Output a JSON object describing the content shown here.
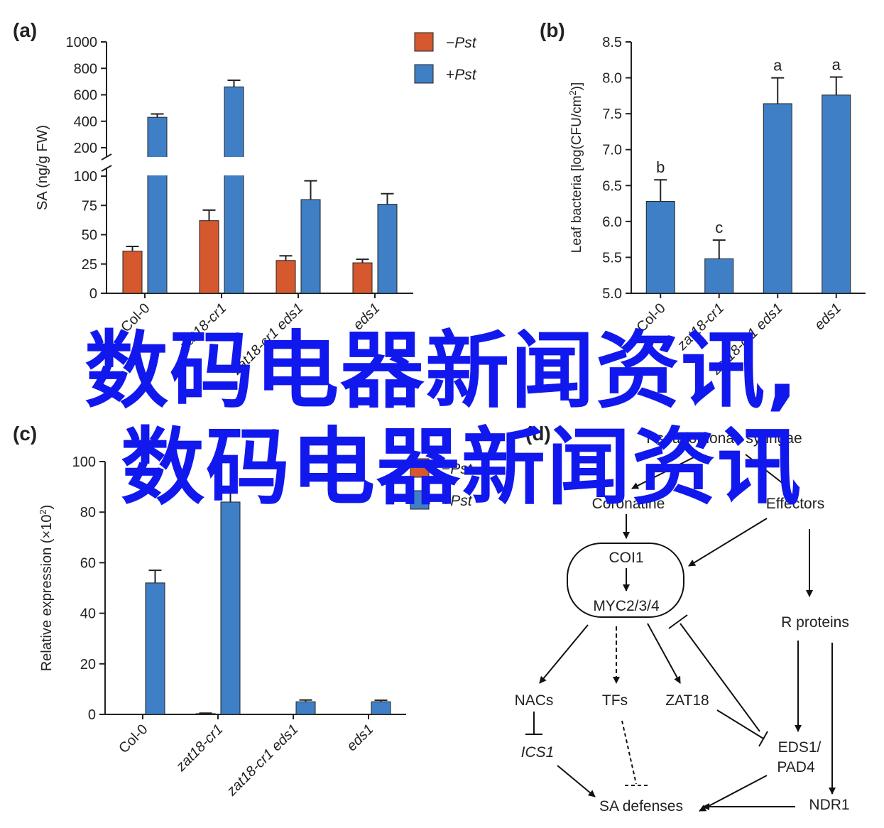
{
  "colors": {
    "minus_pst": "#d6582f",
    "plus_pst": "#3f7fc5",
    "axis": "#222222"
  },
  "chart_data": [
    {
      "panel": "(a)",
      "type": "bar",
      "ylabel": "SA (ng/g FW)",
      "categories": [
        "Col-0",
        "zat18-cr1",
        "zat18-cr1 eds1",
        "eds1"
      ],
      "series": [
        {
          "name": "−Pst",
          "values": [
            36,
            62,
            28,
            26
          ],
          "errors": [
            4,
            9,
            4,
            3
          ]
        },
        {
          "name": "+Pst",
          "values": [
            430,
            660,
            80,
            76
          ],
          "errors": [
            25,
            50,
            16,
            9
          ]
        }
      ],
      "y_break": {
        "lower": [
          0,
          100
        ],
        "upper": [
          100,
          1000
        ]
      },
      "yticks_lower": [
        "0",
        "25",
        "50",
        "75",
        "100"
      ],
      "yticks_upper": [
        "200",
        "400",
        "600",
        "800",
        "1000"
      ],
      "legend": "top-right"
    },
    {
      "panel": "(b)",
      "type": "bar",
      "ylabel": "Leaf bacteria [log(CFU/cm2)]",
      "categories": [
        "Col-0",
        "zat18-cr1",
        "zat18-cr1 eds1",
        "eds1"
      ],
      "values": [
        6.28,
        5.48,
        7.64,
        7.76
      ],
      "errors": [
        0.3,
        0.26,
        0.36,
        0.25
      ],
      "letters": [
        "b",
        "c",
        "a",
        "a"
      ],
      "ylim": [
        5.0,
        8.5
      ],
      "yticks": [
        "5.0",
        "5.5",
        "6.0",
        "6.5",
        "7.0",
        "7.5",
        "8.0",
        "8.5"
      ]
    },
    {
      "panel": "(c)",
      "type": "bar",
      "ylabel": "Relative expression (×10²)",
      "categories": [
        "Col-0",
        "zat18-cr1",
        "zat18-cr1 eds1",
        "eds1"
      ],
      "series": [
        {
          "name": "−Pst",
          "values": [
            0,
            0.3,
            0,
            0
          ],
          "errors": [
            0,
            0.2,
            0,
            0
          ]
        },
        {
          "name": "+Pst",
          "values": [
            52,
            84,
            5,
            5
          ],
          "errors": [
            5,
            5,
            0.7,
            0.6
          ]
        }
      ],
      "ylim": [
        0,
        100
      ],
      "yticks": [
        "0",
        "20",
        "40",
        "60",
        "80",
        "100"
      ],
      "legend": "top-right"
    }
  ],
  "diagram": {
    "panel": "(d)",
    "nodes": {
      "pst": "Pseudomonas syringae",
      "coronatine": "Coronatine",
      "effectors": "Effectors",
      "coi1": "COI1",
      "myc": "MYC2/3/4",
      "rproteins": "R proteins",
      "nacs": "NACs",
      "tfs": "TFs",
      "zat18": "ZAT18",
      "ics1": "ICS1",
      "eds1pad4_line1": "EDS1/",
      "eds1pad4_line2": "PAD4",
      "ndr1": "NDR1",
      "sa": "SA defenses"
    }
  },
  "watermark": {
    "line1": "数码电器新闻资讯,",
    "line2": "数码电器新闻资讯"
  }
}
